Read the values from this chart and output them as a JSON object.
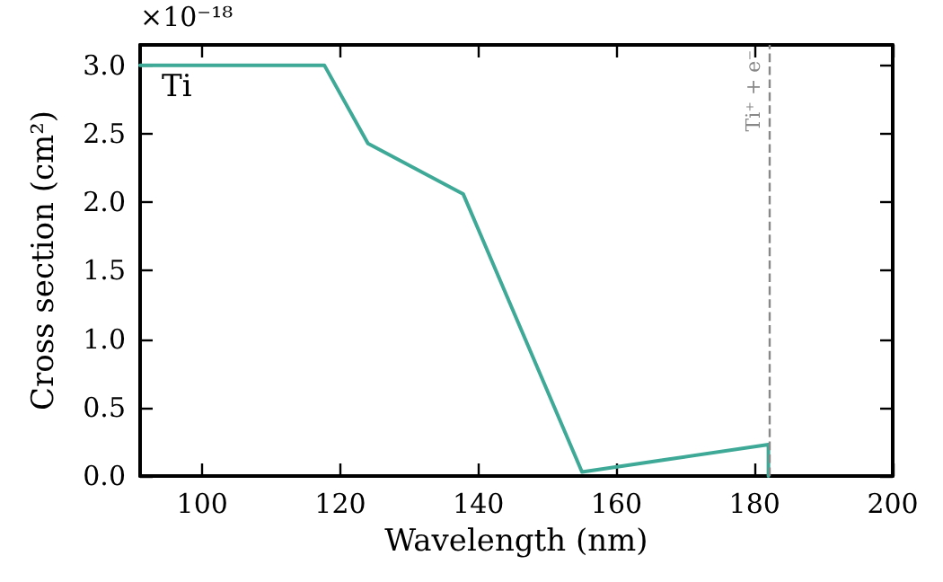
{
  "chart_data": {
    "type": "line",
    "xlabel": "Wavelength (nm)",
    "ylabel": "Cross section (cm²)",
    "annotations": [
      "×10⁻¹⁸",
      "Ti"
    ],
    "series": [
      {
        "color": "#3fa997",
        "x": [
          91,
          117.7,
          124,
          137.8,
          155,
          182,
          182
        ],
        "values": [
          3.0,
          3.0,
          2.43,
          2.06,
          0.03,
          0.23,
          0
        ]
      }
    ],
    "xlim": [
      91,
      200
    ],
    "xticks": [
      100,
      120,
      140,
      160,
      180,
      200
    ],
    "ylim": [
      0,
      3.15
    ],
    "yticks": [
      {
        "value": 0,
        "label": "0.0"
      },
      {
        "value": 0.5,
        "label": "0.5"
      },
      {
        "value": 1,
        "label": "1.0"
      },
      {
        "value": 1.5,
        "label": "1.5"
      },
      {
        "value": 2,
        "label": "2.0"
      },
      {
        "value": 2.5,
        "label": "2.5"
      },
      {
        "value": 3,
        "label": "3.0"
      }
    ],
    "ref_lines": [
      {
        "axis": "x",
        "value": 182,
        "label": "Ti⁺ + e⁻",
        "color": "#888888",
        "line_style": "dashed"
      }
    ],
    "grid": false,
    "marker": "none",
    "line_style": "solid"
  }
}
